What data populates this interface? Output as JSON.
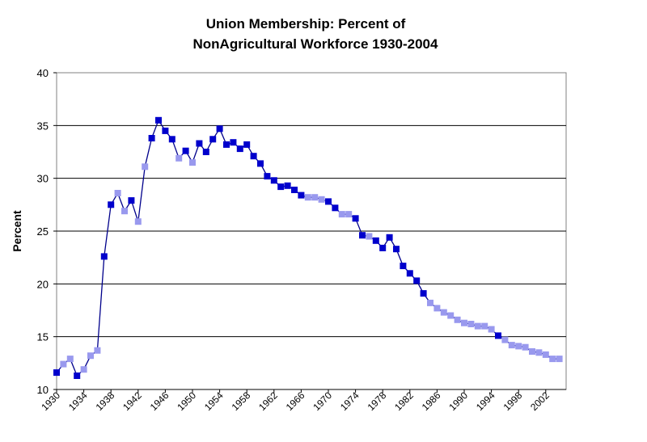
{
  "chart_data": {
    "type": "line",
    "title": [
      "Union Membership:  Percent of",
      "NonAgricultural Workforce 1930-2004"
    ],
    "xlabel": "",
    "ylabel": "Percent",
    "xlim": [
      1930,
      2005
    ],
    "ylim": [
      10,
      40
    ],
    "y_ticks": [
      10,
      15,
      20,
      25,
      30,
      35,
      40
    ],
    "x_tick_labels": [
      "1930",
      "1934",
      "1938",
      "1942",
      "1946",
      "1950",
      "1954",
      "1958",
      "1962",
      "1966",
      "1970",
      "1974",
      "1978",
      "1982",
      "1986",
      "1990",
      "1994",
      "1998",
      "2002"
    ],
    "grid": "horizontal",
    "colors": {
      "line": "#00008b",
      "marker_dark": "#0000cc",
      "marker_light": "#9999ee",
      "grid": "#000000"
    },
    "series": [
      {
        "x": [
          1930,
          1931,
          1932,
          1933,
          1934,
          1935,
          1936,
          1937,
          1938,
          1939,
          1940,
          1941,
          1942,
          1943,
          1944,
          1945,
          1946,
          1947,
          1948,
          1949,
          1950,
          1951,
          1952,
          1953,
          1954,
          1955,
          1956,
          1957,
          1958,
          1959,
          1960,
          1961,
          1962,
          1963,
          1964,
          1965,
          1966,
          1967,
          1968,
          1969,
          1970,
          1971,
          1972,
          1973,
          1974,
          1975,
          1976,
          1977,
          1978,
          1979,
          1980,
          1981,
          1982,
          1983,
          1984,
          1985,
          1986,
          1987,
          1988,
          1989,
          1990,
          1991,
          1992,
          1993,
          1994,
          1995,
          1996,
          1997,
          1998,
          1999,
          2000,
          2001,
          2002,
          2003,
          2004
        ],
        "values": [
          11.6,
          12.4,
          12.9,
          11.3,
          11.9,
          13.2,
          13.7,
          22.6,
          27.5,
          28.6,
          26.9,
          27.9,
          25.9,
          31.1,
          33.8,
          35.5,
          34.5,
          33.7,
          31.9,
          32.6,
          31.5,
          33.3,
          32.5,
          33.7,
          34.7,
          33.2,
          33.4,
          32.8,
          33.2,
          32.1,
          31.4,
          30.2,
          29.8,
          29.2,
          29.3,
          28.9,
          28.4,
          28.2,
          28.2,
          28.0,
          27.8,
          27.2,
          26.6,
          26.6,
          26.2,
          24.6,
          24.5,
          24.1,
          23.4,
          24.4,
          23.3,
          21.7,
          21.0,
          20.3,
          19.1,
          18.2,
          17.7,
          17.3,
          17.0,
          16.6,
          16.3,
          16.2,
          16.0,
          16.0,
          15.7,
          15.1,
          14.7,
          14.2,
          14.1,
          14.0,
          13.6,
          13.5,
          13.3,
          12.9,
          12.9
        ],
        "marker_shade": [
          0,
          1,
          1,
          0,
          1,
          1,
          1,
          0,
          0,
          1,
          1,
          0,
          1,
          1,
          0,
          0,
          0,
          0,
          1,
          0,
          1,
          0,
          0,
          0,
          0,
          0,
          0,
          0,
          0,
          0,
          0,
          0,
          0,
          0,
          0,
          0,
          0,
          1,
          1,
          1,
          0,
          0,
          1,
          1,
          0,
          0,
          1,
          0,
          0,
          0,
          0,
          0,
          0,
          0,
          0,
          1,
          1,
          1,
          1,
          1,
          1,
          1,
          1,
          1,
          1,
          0,
          1,
          1,
          1,
          1,
          1,
          1,
          1,
          1,
          1
        ]
      }
    ]
  }
}
